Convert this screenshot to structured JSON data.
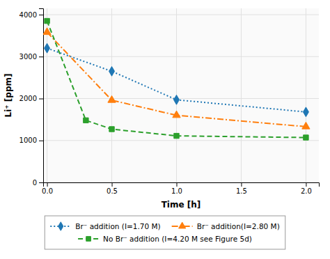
{
  "chart_data": {
    "type": "line",
    "xlabel": "Time [h]",
    "ylabel": "Li⁺ [ppm]",
    "series": [
      {
        "name": "Br⁻ addition (Ⅰ=1.70 M)",
        "x": [
          0.0,
          0.5,
          1.0,
          2.0
        ],
        "values": [
          3200,
          2650,
          1970,
          1680
        ],
        "marker": "diamond",
        "line_style": "dotted"
      },
      {
        "name": "Br⁻ addition(Ⅰ=2.80 M)",
        "x": [
          0.0,
          0.5,
          1.0,
          2.0
        ],
        "values": [
          3580,
          1960,
          1600,
          1330
        ],
        "marker": "triangle",
        "line_style": "dashdot"
      },
      {
        "name": "No Br⁻ addition (Ⅰ=4.20 M see Figure 5d)",
        "x": [
          0.0,
          0.3,
          0.5,
          1.0,
          2.0
        ],
        "values": [
          3850,
          1480,
          1270,
          1110,
          1070
        ],
        "marker": "square",
        "line_style": "dashed"
      }
    ],
    "xlim": [
      -0.03,
      2.1
    ],
    "ylim": [
      0,
      4150
    ],
    "xticks": [
      {
        "value": 0,
        "label": "0.0"
      },
      0.5,
      {
        "value": 1,
        "label": "1.0"
      },
      1.5,
      {
        "value": 2,
        "label": "2.0"
      }
    ],
    "yticks": [
      0,
      1000,
      2000,
      3000,
      4000
    ],
    "grid": true,
    "legend": "bottom"
  }
}
